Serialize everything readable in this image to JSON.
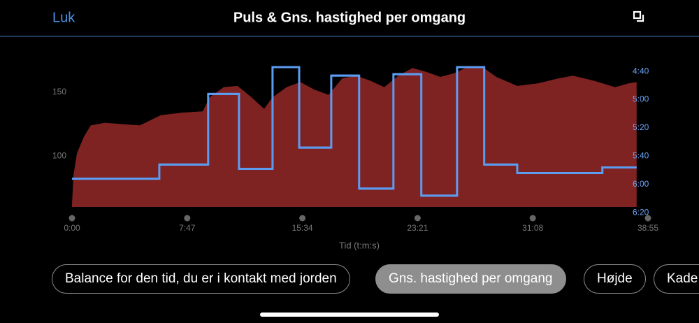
{
  "header": {
    "close": "Luk",
    "title": "Puls & Gns. hastighed per omgang"
  },
  "chart_data": {
    "type": "area",
    "x_label": "Tid (t:m:s)",
    "xlim": [
      0,
      2335
    ],
    "xticks": [
      {
        "value": 0,
        "label": "0:00"
      },
      {
        "value": 467,
        "label": "7:47"
      },
      {
        "value": 934,
        "label": "15:34"
      },
      {
        "value": 1401,
        "label": "23:21"
      },
      {
        "value": 1868,
        "label": "31:08"
      },
      {
        "value": 2335,
        "label": "38:55"
      }
    ],
    "ylim": [
      60,
      173
    ],
    "yticks": [
      100,
      150
    ],
    "y2lim": [
      376,
      274
    ],
    "y2ticks": [
      {
        "value": 280,
        "label": "4:40"
      },
      {
        "value": 300,
        "label": "5:00"
      },
      {
        "value": 320,
        "label": "5:20"
      },
      {
        "value": 340,
        "label": "5:40"
      },
      {
        "value": 360,
        "label": "6:00"
      },
      {
        "value": 380,
        "label": "6:20"
      }
    ],
    "series": [
      {
        "color": "#7e2222",
        "x": [
          0,
          6,
          20,
          48,
          76,
          133,
          275,
          360,
          445,
          530,
          558,
          615,
          671,
          728,
          779,
          813,
          870,
          926,
          983,
          1040,
          1096,
          1153,
          1210,
          1266,
          1323,
          1380,
          1436,
          1493,
          1550,
          1606,
          1663,
          1720,
          1805,
          1890,
          1975,
          2031,
          2116,
          2201,
          2258,
          2289
        ],
        "values": [
          62,
          85,
          102,
          115,
          124,
          126,
          124,
          132,
          134,
          135,
          146,
          154,
          155,
          146,
          137,
          146,
          154,
          158,
          152,
          148,
          161,
          163,
          159,
          154,
          163,
          169,
          166,
          162,
          165,
          170,
          170,
          162,
          155,
          157,
          161,
          163,
          159,
          154,
          157,
          158
        ]
      },
      {
        "color": "#5c9cf0",
        "axis": "y2",
        "step": true,
        "x": [
          0,
          354,
          552,
          677,
          813,
          921,
          1051,
          1164,
          1303,
          1416,
          1561,
          1671,
          1805,
          2150
        ],
        "end": 2289,
        "values": [
          356,
          346,
          296,
          349,
          277,
          334,
          283,
          363,
          282,
          368,
          277,
          346,
          352,
          348
        ]
      }
    ]
  },
  "tabs": [
    "Balance for den tid, du er i kontakt med jorden",
    "Gns. hastighed per omgang",
    "Højde",
    "Kade"
  ]
}
